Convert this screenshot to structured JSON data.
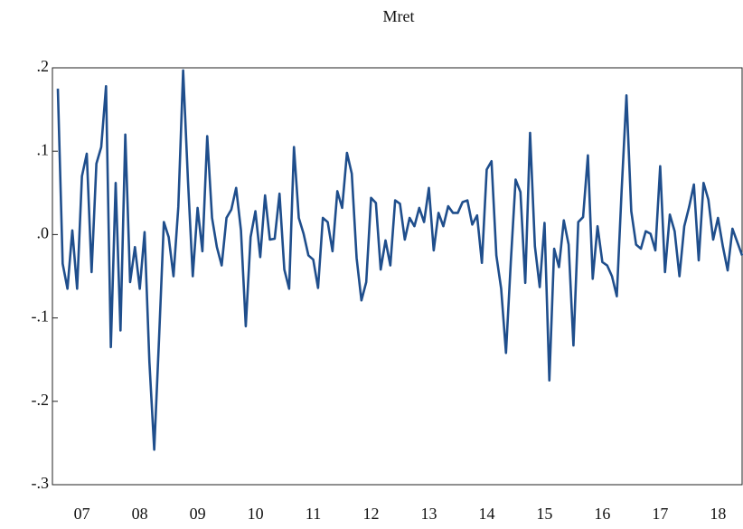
{
  "chart_data": {
    "type": "line",
    "title": "Mret",
    "categories": [
      null,
      null,
      null,
      null,
      null,
      "07",
      null,
      null,
      null,
      null,
      null,
      null,
      null,
      null,
      null,
      null,
      null,
      "08",
      null,
      null,
      null,
      null,
      null,
      null,
      null,
      null,
      null,
      null,
      null,
      "09",
      null,
      null,
      null,
      null,
      null,
      null,
      null,
      null,
      null,
      null,
      null,
      "10",
      null,
      null,
      null,
      null,
      null,
      null,
      null,
      null,
      null,
      null,
      null,
      "11",
      null,
      null,
      null,
      null,
      null,
      null,
      null,
      null,
      null,
      null,
      null,
      "12",
      null,
      null,
      null,
      null,
      null,
      null,
      null,
      null,
      null,
      null,
      null,
      "13",
      null,
      null,
      null,
      null,
      null,
      null,
      null,
      null,
      null,
      null,
      null,
      "14",
      null,
      null,
      null,
      null,
      null,
      null,
      null,
      null,
      null,
      null,
      null,
      "15",
      null,
      null,
      null,
      null,
      null,
      null,
      null,
      null,
      null,
      null,
      null,
      "16",
      null,
      null,
      null,
      null,
      null,
      null,
      null,
      null,
      null,
      null,
      null,
      "17",
      null,
      null,
      null,
      null,
      null,
      null,
      null,
      null,
      null,
      null,
      null,
      "18",
      null,
      null,
      null,
      null,
      null
    ],
    "series": [
      {
        "name": "Mret",
        "color": "#1f4e8c",
        "values": [
          0.175,
          -0.035,
          -0.065,
          0.005,
          -0.065,
          0.07,
          0.097,
          -0.045,
          0.085,
          0.105,
          0.178,
          -0.135,
          0.062,
          -0.115,
          0.12,
          -0.057,
          -0.015,
          -0.065,
          0.003,
          -0.153,
          -0.258,
          -0.125,
          0.015,
          -0.003,
          -0.05,
          0.033,
          0.197,
          0.065,
          -0.05,
          0.032,
          -0.02,
          0.118,
          0.02,
          -0.015,
          -0.037,
          0.02,
          0.03,
          0.056,
          0.005,
          -0.11,
          -0.003,
          0.028,
          -0.027,
          0.047,
          -0.006,
          -0.005,
          0.049,
          -0.042,
          -0.065,
          0.105,
          0.02,
          0.001,
          -0.025,
          -0.03,
          -0.064,
          0.02,
          0.015,
          -0.02,
          0.052,
          0.032,
          0.098,
          0.073,
          -0.028,
          -0.079,
          -0.057,
          0.044,
          0.038,
          -0.042,
          -0.007,
          -0.037,
          0.041,
          0.037,
          -0.006,
          0.02,
          0.01,
          0.032,
          0.015,
          0.056,
          -0.019,
          0.026,
          0.01,
          0.034,
          0.026,
          0.026,
          0.039,
          0.041,
          0.012,
          0.023,
          -0.034,
          0.078,
          0.088,
          -0.025,
          -0.065,
          -0.142,
          -0.033,
          0.066,
          0.051,
          -0.058,
          0.122,
          -0.014,
          -0.063,
          0.014,
          -0.175,
          -0.017,
          -0.039,
          0.017,
          -0.012,
          -0.133,
          0.015,
          0.021,
          0.095,
          -0.053,
          0.01,
          -0.033,
          -0.037,
          -0.05,
          -0.074,
          0.053,
          0.167,
          0.028,
          -0.012,
          -0.017,
          0.004,
          0.001,
          -0.019,
          0.082,
          -0.045,
          0.024,
          0.004,
          -0.05,
          0.01,
          0.033,
          0.06,
          -0.031,
          0.062,
          0.042,
          -0.006,
          0.02,
          -0.014,
          -0.043,
          0.007,
          -0.009,
          -0.025
        ]
      }
    ],
    "ylim": [
      -0.3,
      0.2
    ],
    "yticks": [
      {
        "value": -0.3,
        "label": "-.3"
      },
      {
        "value": -0.2,
        "label": "-.2"
      },
      {
        "value": -0.1,
        "label": "-.1"
      },
      {
        "value": 0,
        "label": ".0"
      },
      {
        "value": 0.1,
        "label": ".1"
      },
      {
        "value": 0.2,
        "label": ".2"
      }
    ],
    "grid": false
  }
}
